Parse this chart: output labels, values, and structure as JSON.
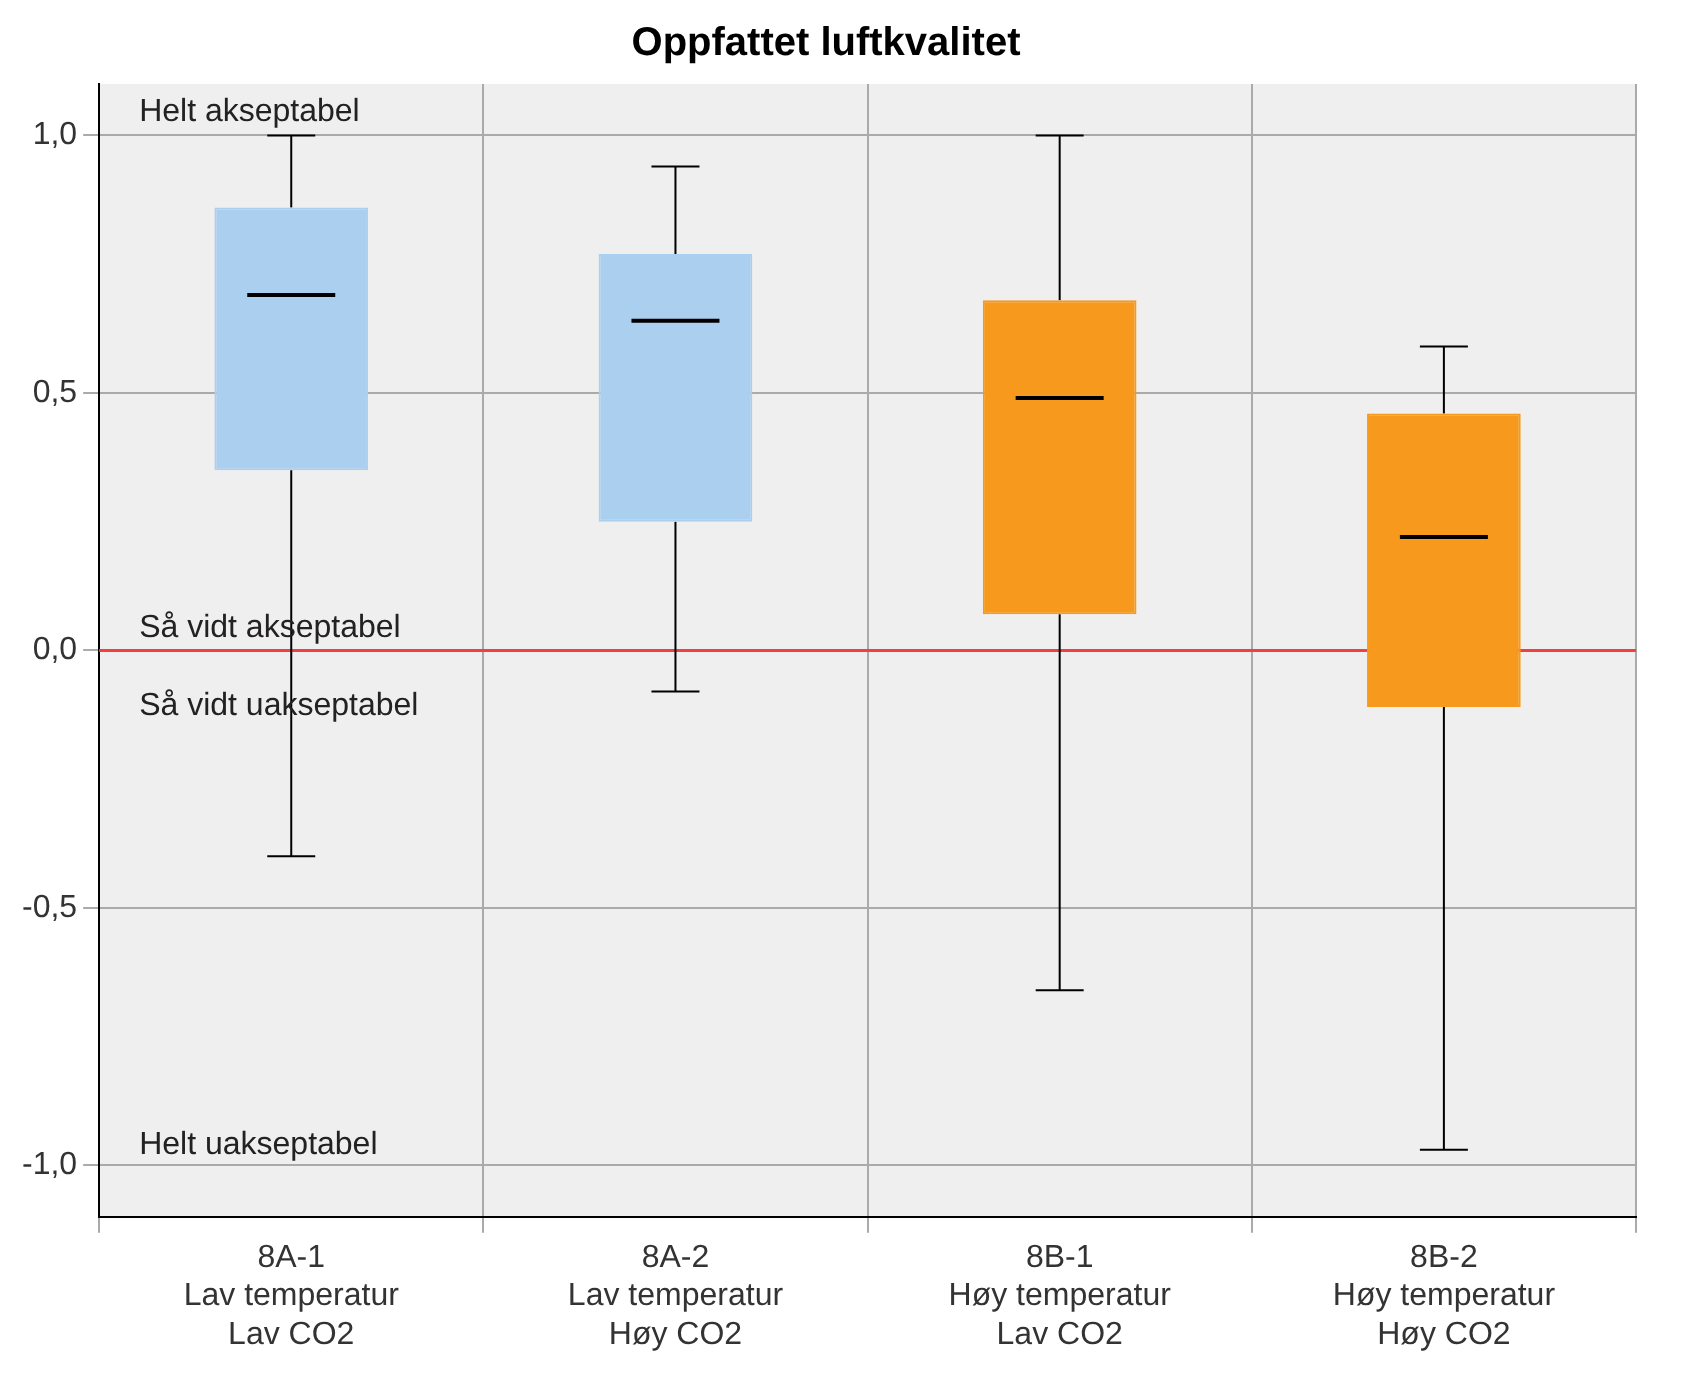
{
  "chart_data": {
    "type": "box",
    "title": "Oppfattet luftkvalitet",
    "categories": [
      "8A-1\nLav temperatur\nLav CO2",
      "8A-2\nLav temperatur\nHøy CO2",
      "8B-1\nHøy temperatur\nLav CO2",
      "8B-2\nHøy temperatur\nHøy CO2"
    ],
    "boxes": [
      {
        "low": -0.4,
        "q1": 0.35,
        "median": 0.69,
        "q3": 0.86,
        "high": 1.0
      },
      {
        "low": -0.08,
        "q1": 0.25,
        "median": 0.64,
        "q3": 0.77,
        "high": 0.94
      },
      {
        "low": -0.66,
        "q1": 0.07,
        "median": 0.49,
        "q3": 0.68,
        "high": 1.0
      },
      {
        "low": -0.97,
        "q1": -0.11,
        "median": 0.22,
        "q3": 0.46,
        "high": 0.59
      }
    ],
    "colors": [
      "#abd0ef",
      "#abd0ef",
      "#f7991c",
      "#f7991c"
    ],
    "ylim": [
      -1.1,
      1.1
    ],
    "yticks": [
      {
        "value": -1,
        "label": "-1,0"
      },
      {
        "value": -0.5,
        "label": "-0,5"
      },
      {
        "value": 0,
        "label": "0,0"
      },
      {
        "value": 0.5,
        "label": "0,5"
      },
      {
        "value": 1,
        "label": "1,0"
      }
    ],
    "grid": true,
    "legend": false,
    "ref_lines": [
      {
        "axis": "y",
        "value": 0,
        "color": "#f04040"
      }
    ],
    "annotations": [
      "Helt akseptabel",
      {
        "text": "Så vidt akseptabel",
        "y": 0
      },
      {
        "text": "Så vidt uakseptabel",
        "y": 0
      },
      "Helt uakseptabel"
    ]
  }
}
